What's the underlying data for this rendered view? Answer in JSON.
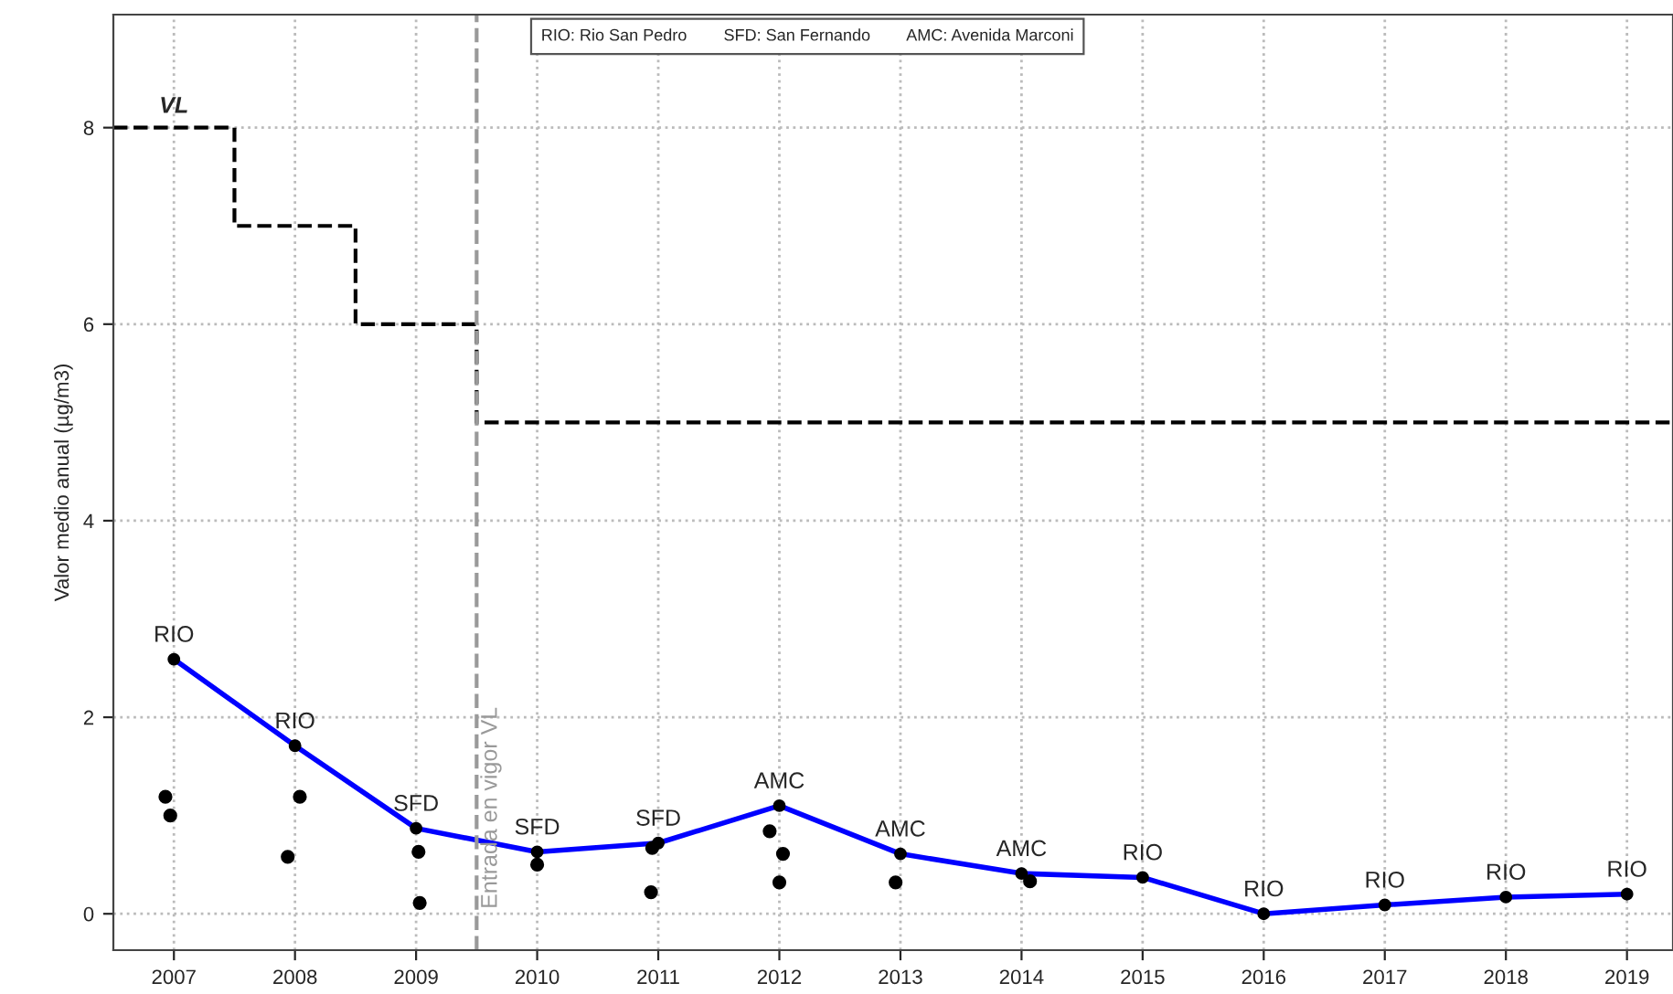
{
  "chart_data": {
    "type": "line",
    "ylabel": "Valor medio anual (µg/m3)",
    "xlim": [
      2006.5,
      2019.38
    ],
    "ylim": [
      -0.37,
      9.15
    ],
    "xticks": [
      2007,
      2008,
      2009,
      2010,
      2011,
      2012,
      2013,
      2014,
      2015,
      2016,
      2017,
      2018,
      2019
    ],
    "yticks": [
      0,
      2,
      4,
      6,
      8
    ],
    "grid": true,
    "series": [
      {
        "type": "step",
        "color": "#000000",
        "line_style": "dashed",
        "marker": "none",
        "x": [
          2006.5,
          2007.5,
          2008.5,
          2009.5,
          2019.38
        ],
        "values": [
          8,
          7,
          6,
          5,
          5
        ]
      },
      {
        "color": "#0000ff",
        "line_style": "solid",
        "marker": "circle",
        "x": [
          2007,
          2008,
          2009,
          2010,
          2011,
          2012,
          2013,
          2014,
          2015,
          2016,
          2017,
          2018,
          2019
        ],
        "values": [
          2.59,
          1.71,
          0.87,
          0.63,
          0.72,
          1.1,
          0.61,
          0.41,
          0.37,
          0,
          0.09,
          0.17,
          0.2
        ],
        "value_labels": [
          "RIO",
          "RIO",
          "SFD",
          "SFD",
          "SFD",
          "AMC",
          "AMC",
          "AMC",
          "RIO",
          "RIO",
          "RIO",
          "RIO",
          "RIO"
        ]
      },
      {
        "type": "scatter",
        "color": "#000000",
        "marker": "circle",
        "x": [
          2006.93,
          2006.97,
          2008.04,
          2007.94,
          2009.02,
          2009.03,
          2010.0,
          2010.95,
          2010.94,
          2011.92,
          2012.03,
          2012.0,
          2012.96,
          2014.07
        ],
        "values": [
          1.19,
          1.0,
          1.19,
          0.58,
          0.63,
          0.11,
          0.5,
          0.67,
          0.22,
          0.84,
          0.61,
          0.32,
          0.32,
          0.33
        ]
      }
    ],
    "ref_lines": [
      {
        "axis": "x",
        "value": 2009.5,
        "label": "Entrada en vigor VL",
        "color": "#999999",
        "line_style": "dashed"
      }
    ],
    "annotations": [
      {
        "text": "VL",
        "x": 2007,
        "y": 8
      },
      "RIO: Rio San Pedro",
      "SFD: San Fernando",
      "AMC: Avenida Marconi"
    ]
  }
}
